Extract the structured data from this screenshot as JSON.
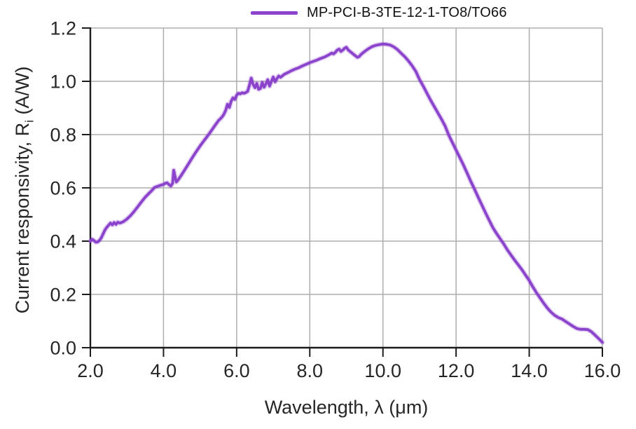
{
  "colors": {
    "background": "#ffffff",
    "grid": "#adadad",
    "axis": "#1c1c1c",
    "tick_text": "#262626",
    "series_purple": "#8b43cc"
  },
  "chart_data": {
    "type": "line",
    "title": "",
    "xlabel": "Wavelength, λ (μm)",
    "ylabel": {
      "prefix": "Current responsivity, R",
      "sub": "i",
      "suffix": " (A/W)"
    },
    "xlim": [
      2.0,
      16.0
    ],
    "ylim": [
      0.0,
      1.2
    ],
    "x_ticks": [
      2.0,
      4.0,
      6.0,
      8.0,
      10.0,
      12.0,
      14.0,
      16.0
    ],
    "x_tick_labels": [
      "2.0",
      "4.0",
      "6.0",
      "8.0",
      "10.0",
      "12.0",
      "14.0",
      "16.0"
    ],
    "y_ticks": [
      0.0,
      0.2,
      0.4,
      0.6,
      0.8,
      1.0,
      1.2
    ],
    "y_tick_labels": [
      "0.0",
      "0.2",
      "0.4",
      "0.6",
      "0.8",
      "1.0",
      "1.2"
    ],
    "grid": true,
    "legend_position": "top-center",
    "series": [
      {
        "name": "MP-PCI-B-3TE-12-1-TO8/TO66",
        "color": "#8b43cc",
        "points": [
          [
            2.0,
            0.4
          ],
          [
            2.05,
            0.407
          ],
          [
            2.1,
            0.402
          ],
          [
            2.15,
            0.396
          ],
          [
            2.2,
            0.397
          ],
          [
            2.25,
            0.403
          ],
          [
            2.3,
            0.413
          ],
          [
            2.35,
            0.428
          ],
          [
            2.4,
            0.442
          ],
          [
            2.45,
            0.452
          ],
          [
            2.5,
            0.46
          ],
          [
            2.55,
            0.468
          ],
          [
            2.6,
            0.461
          ],
          [
            2.65,
            0.47
          ],
          [
            2.7,
            0.463
          ],
          [
            2.75,
            0.471
          ],
          [
            2.8,
            0.468
          ],
          [
            2.85,
            0.47
          ],
          [
            2.9,
            0.473
          ],
          [
            3.0,
            0.483
          ],
          [
            3.1,
            0.496
          ],
          [
            3.2,
            0.512
          ],
          [
            3.3,
            0.53
          ],
          [
            3.4,
            0.548
          ],
          [
            3.5,
            0.565
          ],
          [
            3.6,
            0.579
          ],
          [
            3.7,
            0.593
          ],
          [
            3.75,
            0.601
          ],
          [
            3.8,
            0.604
          ],
          [
            3.9,
            0.609
          ],
          [
            4.0,
            0.613
          ],
          [
            4.05,
            0.617
          ],
          [
            4.1,
            0.619
          ],
          [
            4.15,
            0.612
          ],
          [
            4.2,
            0.607
          ],
          [
            4.25,
            0.618
          ],
          [
            4.28,
            0.666
          ],
          [
            4.32,
            0.64
          ],
          [
            4.35,
            0.622
          ],
          [
            4.4,
            0.63
          ],
          [
            4.5,
            0.65
          ],
          [
            4.6,
            0.672
          ],
          [
            4.7,
            0.694
          ],
          [
            4.8,
            0.716
          ],
          [
            4.9,
            0.737
          ],
          [
            5.0,
            0.757
          ],
          [
            5.1,
            0.776
          ],
          [
            5.2,
            0.794
          ],
          [
            5.3,
            0.813
          ],
          [
            5.4,
            0.833
          ],
          [
            5.5,
            0.852
          ],
          [
            5.6,
            0.866
          ],
          [
            5.65,
            0.876
          ],
          [
            5.7,
            0.891
          ],
          [
            5.75,
            0.914
          ],
          [
            5.8,
            0.902
          ],
          [
            5.85,
            0.925
          ],
          [
            5.9,
            0.938
          ],
          [
            5.95,
            0.932
          ],
          [
            6.0,
            0.948
          ],
          [
            6.05,
            0.955
          ],
          [
            6.1,
            0.953
          ],
          [
            6.15,
            0.957
          ],
          [
            6.2,
            0.955
          ],
          [
            6.25,
            0.958
          ],
          [
            6.3,
            0.962
          ],
          [
            6.35,
            0.985
          ],
          [
            6.4,
            1.012
          ],
          [
            6.45,
            0.988
          ],
          [
            6.5,
            0.976
          ],
          [
            6.55,
            0.992
          ],
          [
            6.6,
            0.97
          ],
          [
            6.65,
            0.973
          ],
          [
            6.7,
            0.996
          ],
          [
            6.75,
            0.978
          ],
          [
            6.8,
            0.99
          ],
          [
            6.85,
            1.006
          ],
          [
            6.9,
            0.982
          ],
          [
            6.95,
            1.0
          ],
          [
            7.0,
            1.016
          ],
          [
            7.05,
            0.998
          ],
          [
            7.1,
            1.01
          ],
          [
            7.15,
            1.02
          ],
          [
            7.2,
            1.015
          ],
          [
            7.3,
            1.026
          ],
          [
            7.4,
            1.033
          ],
          [
            7.5,
            1.04
          ],
          [
            7.6,
            1.046
          ],
          [
            7.7,
            1.051
          ],
          [
            7.8,
            1.058
          ],
          [
            7.9,
            1.064
          ],
          [
            8.0,
            1.07
          ],
          [
            8.1,
            1.075
          ],
          [
            8.2,
            1.08
          ],
          [
            8.3,
            1.086
          ],
          [
            8.4,
            1.091
          ],
          [
            8.5,
            1.098
          ],
          [
            8.6,
            1.106
          ],
          [
            8.65,
            1.103
          ],
          [
            8.7,
            1.109
          ],
          [
            8.75,
            1.117
          ],
          [
            8.8,
            1.121
          ],
          [
            8.85,
            1.112
          ],
          [
            8.9,
            1.117
          ],
          [
            8.95,
            1.124
          ],
          [
            9.0,
            1.128
          ],
          [
            9.05,
            1.118
          ],
          [
            9.1,
            1.112
          ],
          [
            9.2,
            1.101
          ],
          [
            9.3,
            1.09
          ],
          [
            9.35,
            1.093
          ],
          [
            9.4,
            1.101
          ],
          [
            9.5,
            1.112
          ],
          [
            9.6,
            1.122
          ],
          [
            9.7,
            1.13
          ],
          [
            9.8,
            1.135
          ],
          [
            9.9,
            1.138
          ],
          [
            10.0,
            1.14
          ],
          [
            10.1,
            1.139
          ],
          [
            10.2,
            1.136
          ],
          [
            10.3,
            1.129
          ],
          [
            10.4,
            1.119
          ],
          [
            10.5,
            1.105
          ],
          [
            10.6,
            1.092
          ],
          [
            10.7,
            1.076
          ],
          [
            10.8,
            1.058
          ],
          [
            10.9,
            1.037
          ],
          [
            11.0,
            1.007
          ],
          [
            11.1,
            0.982
          ],
          [
            11.2,
            0.956
          ],
          [
            11.3,
            0.93
          ],
          [
            11.4,
            0.906
          ],
          [
            11.5,
            0.882
          ],
          [
            11.6,
            0.858
          ],
          [
            11.7,
            0.832
          ],
          [
            11.8,
            0.798
          ],
          [
            11.9,
            0.77
          ],
          [
            12.0,
            0.742
          ],
          [
            12.1,
            0.714
          ],
          [
            12.2,
            0.686
          ],
          [
            12.3,
            0.656
          ],
          [
            12.4,
            0.625
          ],
          [
            12.5,
            0.596
          ],
          [
            12.6,
            0.566
          ],
          [
            12.7,
            0.537
          ],
          [
            12.8,
            0.508
          ],
          [
            12.9,
            0.48
          ],
          [
            13.0,
            0.452
          ],
          [
            13.1,
            0.43
          ],
          [
            13.2,
            0.41
          ],
          [
            13.3,
            0.39
          ],
          [
            13.4,
            0.368
          ],
          [
            13.5,
            0.348
          ],
          [
            13.6,
            0.329
          ],
          [
            13.7,
            0.311
          ],
          [
            13.8,
            0.293
          ],
          [
            13.9,
            0.272
          ],
          [
            14.0,
            0.252
          ],
          [
            14.1,
            0.228
          ],
          [
            14.2,
            0.206
          ],
          [
            14.3,
            0.186
          ],
          [
            14.4,
            0.166
          ],
          [
            14.5,
            0.148
          ],
          [
            14.6,
            0.133
          ],
          [
            14.7,
            0.121
          ],
          [
            14.8,
            0.113
          ],
          [
            14.9,
            0.107
          ],
          [
            15.0,
            0.098
          ],
          [
            15.1,
            0.089
          ],
          [
            15.2,
            0.08
          ],
          [
            15.3,
            0.072
          ],
          [
            15.4,
            0.069
          ],
          [
            15.5,
            0.069
          ],
          [
            15.6,
            0.068
          ],
          [
            15.7,
            0.06
          ],
          [
            15.8,
            0.047
          ],
          [
            15.9,
            0.034
          ],
          [
            16.0,
            0.02
          ]
        ]
      }
    ]
  }
}
